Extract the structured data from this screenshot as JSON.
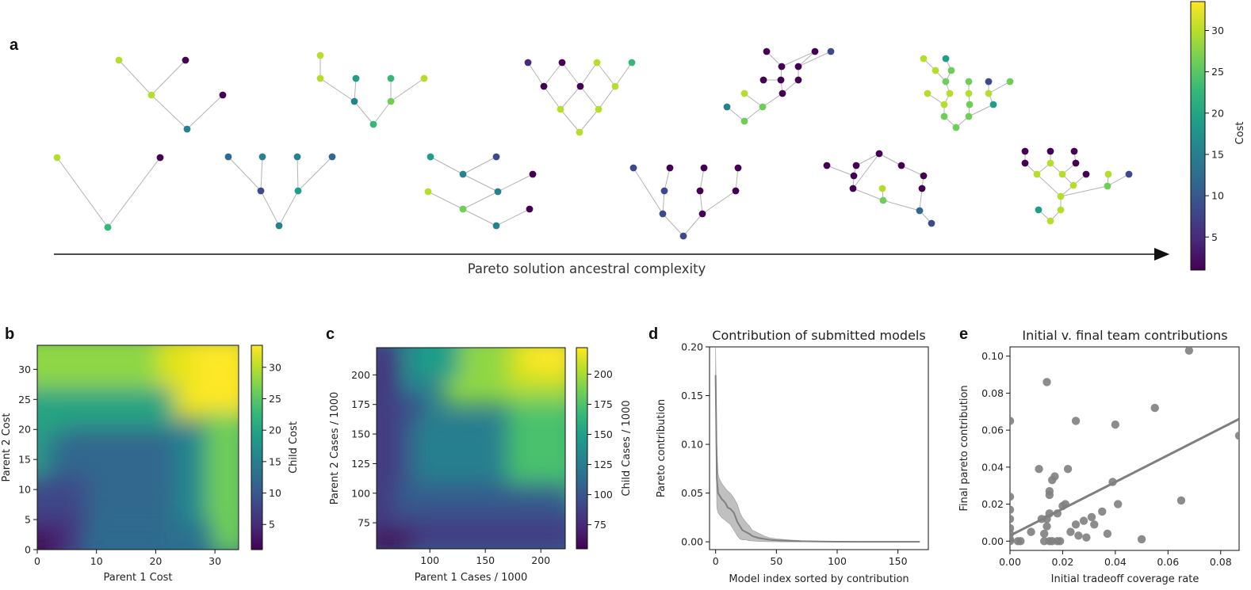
{
  "panel_labels": {
    "a": "a",
    "b": "b",
    "c": "c",
    "d": "d",
    "e": "e"
  },
  "colors": {
    "viridis": [
      "#440154",
      "#482878",
      "#3e4989",
      "#31688e",
      "#26828e",
      "#1f9e89",
      "#35b779",
      "#6ece58",
      "#b5de2b",
      "#fde725"
    ],
    "gray_marker": "#808080",
    "gray_line": "#7f7f7f",
    "edge": "#b3b3b3"
  },
  "panel_a": {
    "arrow_label": "Pareto solution ancestral complexity",
    "colorbar": {
      "label": "Cost",
      "ticks": [
        "5",
        "10",
        "15",
        "20",
        "25",
        "30"
      ],
      "tick_values": [
        5,
        10,
        15,
        20,
        25,
        30
      ],
      "range": [
        1,
        33.5
      ]
    }
  },
  "panel_b": {
    "xlabel": "Parent 1 Cost",
    "ylabel": "Parent 2 Cost",
    "x_ticks": [
      "0",
      "10",
      "20",
      "30"
    ],
    "y_ticks": [
      "0",
      "5",
      "10",
      "15",
      "20",
      "25",
      "30"
    ],
    "colorbar": {
      "label": "Child Cost",
      "ticks": [
        "5",
        "10",
        "15",
        "20",
        "25",
        "30"
      ],
      "tick_values": [
        5,
        10,
        15,
        20,
        25,
        30
      ],
      "range": [
        1,
        33.5
      ]
    }
  },
  "panel_c": {
    "xlabel": "Parent 1 Cases / 1000",
    "ylabel": "Parent 2 Cases / 1000",
    "x_ticks": [
      "100",
      "150",
      "200"
    ],
    "y_ticks": [
      "75",
      "100",
      "125",
      "150",
      "175",
      "200"
    ],
    "colorbar": {
      "label": "Child Cases / 1000",
      "ticks": [
        "75",
        "100",
        "125",
        "150",
        "175",
        "200"
      ],
      "tick_values": [
        75,
        100,
        125,
        150,
        175,
        200
      ],
      "range": [
        55,
        222
      ]
    }
  },
  "panel_d": {
    "title": "Contribution of submitted models",
    "xlabel": "Model index sorted by contribution",
    "ylabel": "Pareto contribution",
    "x_ticks": [
      "0",
      "50",
      "100",
      "150"
    ],
    "y_ticks": [
      "0.00",
      "0.05",
      "0.10",
      "0.15",
      "0.20"
    ]
  },
  "panel_e": {
    "title": "Initial v. final team contributions",
    "xlabel": "Initial tradeoff coverage rate",
    "ylabel": "Final pareto contribution",
    "x_ticks": [
      "0.00",
      "0.02",
      "0.04",
      "0.06",
      "0.08"
    ],
    "y_ticks": [
      "0.00",
      "0.02",
      "0.04",
      "0.06",
      "0.08",
      "0.10"
    ]
  },
  "chart_data": [
    {
      "type": "line",
      "panel": "d",
      "title": "Contribution of submitted models",
      "xlabel": "Model index sorted by contribution",
      "ylabel": "Pareto contribution",
      "xlim": [
        -5,
        175
      ],
      "ylim": [
        -0.008,
        0.2
      ],
      "series": [
        {
          "x": [
            0,
            1,
            2,
            3,
            5,
            8,
            10,
            12,
            15,
            18,
            20,
            22,
            25,
            28,
            30,
            35,
            40,
            45,
            50,
            60,
            70,
            80,
            90,
            100,
            120,
            140,
            160,
            168
          ],
          "values": [
            0.171,
            0.065,
            0.05,
            0.048,
            0.044,
            0.04,
            0.035,
            0.034,
            0.03,
            0.02,
            0.016,
            0.012,
            0.01,
            0.008,
            0.006,
            0.004,
            0.003,
            0.002,
            0.0015,
            0.001,
            0.0006,
            0.0004,
            0.0002,
            0.0001,
            5e-05,
            2e-05,
            1e-05,
            0.0
          ],
          "ci_upper": [
            0.2,
            0.1,
            0.07,
            0.065,
            0.06,
            0.055,
            0.052,
            0.05,
            0.045,
            0.038,
            0.03,
            0.025,
            0.02,
            0.016,
            0.012,
            0.009,
            0.006,
            0.004,
            0.003,
            0.002,
            0.0012,
            0.0008,
            0.0005,
            0.0003,
            0.00015,
            0.0001,
            5e-05,
            0.0
          ],
          "ci_lower": [
            0.14,
            0.035,
            0.03,
            0.028,
            0.025,
            0.022,
            0.02,
            0.018,
            0.012,
            0.006,
            0.003,
            0.002,
            0.002,
            0.001,
            0.001,
            0.0005,
            0.0003,
            0.0002,
            0.0001,
            0.0,
            0.0,
            0.0,
            0.0,
            0.0,
            0.0,
            0.0,
            0.0,
            0.0
          ]
        }
      ]
    },
    {
      "type": "scatter",
      "panel": "e",
      "title": "Initial v. final team contributions",
      "xlabel": "Initial tradeoff coverage rate",
      "ylabel": "Final pareto contribution",
      "xlim": [
        0,
        0.087
      ],
      "ylim": [
        -0.005,
        0.105
      ],
      "series": [
        {
          "x": [
            0.0,
            0.0,
            0.0,
            0.0,
            0.0,
            0.0,
            0.0,
            0.003,
            0.004,
            0.008,
            0.011,
            0.012,
            0.013,
            0.014,
            0.014,
            0.014,
            0.015,
            0.015,
            0.015,
            0.015,
            0.016,
            0.017,
            0.018,
            0.018,
            0.02,
            0.021,
            0.022,
            0.023,
            0.025,
            0.025,
            0.026,
            0.028,
            0.029,
            0.031,
            0.032,
            0.035,
            0.037,
            0.039,
            0.04,
            0.041,
            0.05,
            0.055,
            0.065,
            0.068,
            0.087,
            0.0,
            0.013,
            0.016,
            0.019
          ],
          "values": [
            0.065,
            0.024,
            0.017,
            0.012,
            0.007,
            0.004,
            0.0,
            0.0,
            0.0,
            0.005,
            0.039,
            0.012,
            0.004,
            0.086,
            0.012,
            0.008,
            0.027,
            0.025,
            0.015,
            0.0,
            0.0,
            0.035,
            0.015,
            0.0,
            0.019,
            0.02,
            0.039,
            0.005,
            0.065,
            0.009,
            0.003,
            0.011,
            0.002,
            0.013,
            0.009,
            0.016,
            0.004,
            0.032,
            0.063,
            0.02,
            0.001,
            0.072,
            0.022,
            0.103,
            0.057,
            0.001,
            0.0,
            0.033,
            0.0
          ]
        },
        {
          "name": "fit",
          "x": [
            0.0,
            0.087
          ],
          "values": [
            0.003,
            0.066
          ]
        }
      ]
    }
  ]
}
